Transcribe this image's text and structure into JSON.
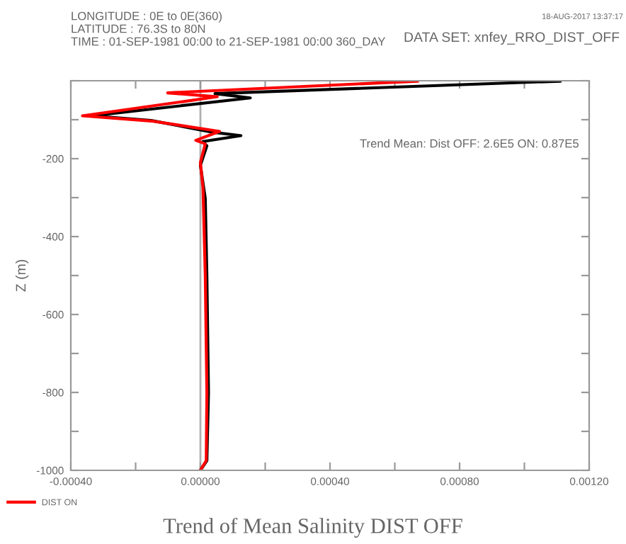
{
  "chart_data": {
    "type": "line",
    "title": "Trend of Mean Salinity DIST OFF",
    "ylabel": "Z (m)",
    "annotations": [
      "LONGITUDE : 0E to 0E(360)",
      "LATITUDE : 76.3S to 80N",
      "TIME : 01-SEP-1981 00:00 to 21-SEP-1981 00:00 360_DAY",
      "DATA SET: xnfey_RRO_DIST_OFF",
      "18-AUG-2017 13:37:17",
      "Trend Mean: Dist OFF: 2.6E5 ON: 0.87E5"
    ],
    "series": [
      {
        "color": "#000000",
        "x": [
          0.00111,
          4.5e-05,
          0.000154,
          -0.000334,
          -0.000152,
          3.7e-05,
          0.000125,
          8e-06,
          2e-05,
          0.0,
          1.5e-05,
          2e-05,
          2.5e-05,
          2e-05,
          0.0
        ],
        "values": [
          -1,
          -33,
          -44,
          -90,
          -102,
          -132,
          -141,
          -156,
          -167,
          -217,
          -302,
          -500,
          -800,
          -975,
          -1000
        ]
      },
      {
        "name": "DIST ON",
        "color": "#ff0000",
        "x": [
          0.00067,
          -0.000101,
          5.2e-05,
          -0.000364,
          -0.000145,
          5.9e-05,
          -1.4e-05,
          1.5e-05,
          0.0,
          8e-06,
          1.5e-05,
          2e-05,
          1.8e-05,
          0.0
        ],
        "values": [
          -1,
          -31,
          -41,
          -90,
          -104,
          -130,
          -153,
          -162,
          -210,
          -276,
          -500,
          -800,
          -975,
          -1000
        ]
      }
    ],
    "xlim": [
      -0.0004,
      0.0012
    ],
    "xticks": [
      {
        "value": -0.0004,
        "label": "-0.00040"
      },
      {
        "value": -0.0002,
        "label": null
      },
      {
        "value": 0.0,
        "label": "0.00000"
      },
      {
        "value": 0.0002,
        "label": null
      },
      {
        "value": 0.0004,
        "label": "0.00040"
      },
      {
        "value": 0.0006,
        "label": null
      },
      {
        "value": 0.0008,
        "label": "0.00080"
      },
      {
        "value": 0.001,
        "label": null
      },
      {
        "value": 0.0012,
        "label": "0.00120"
      }
    ],
    "ylim": [
      -1000,
      0
    ],
    "yticks": [
      -1000,
      {
        "value": -900,
        "label": null
      },
      -800,
      {
        "value": -700,
        "label": null
      },
      -600,
      {
        "value": -500,
        "label": null
      },
      -400,
      {
        "value": -300,
        "label": null
      },
      -200,
      {
        "value": -100,
        "label": null
      },
      {
        "value": 0,
        "label": null
      }
    ],
    "ref_lines": [
      {
        "axis": "x",
        "value": 0.0,
        "color": "#b0b0b0"
      }
    ],
    "legend": "bottom left",
    "grid": false
  }
}
